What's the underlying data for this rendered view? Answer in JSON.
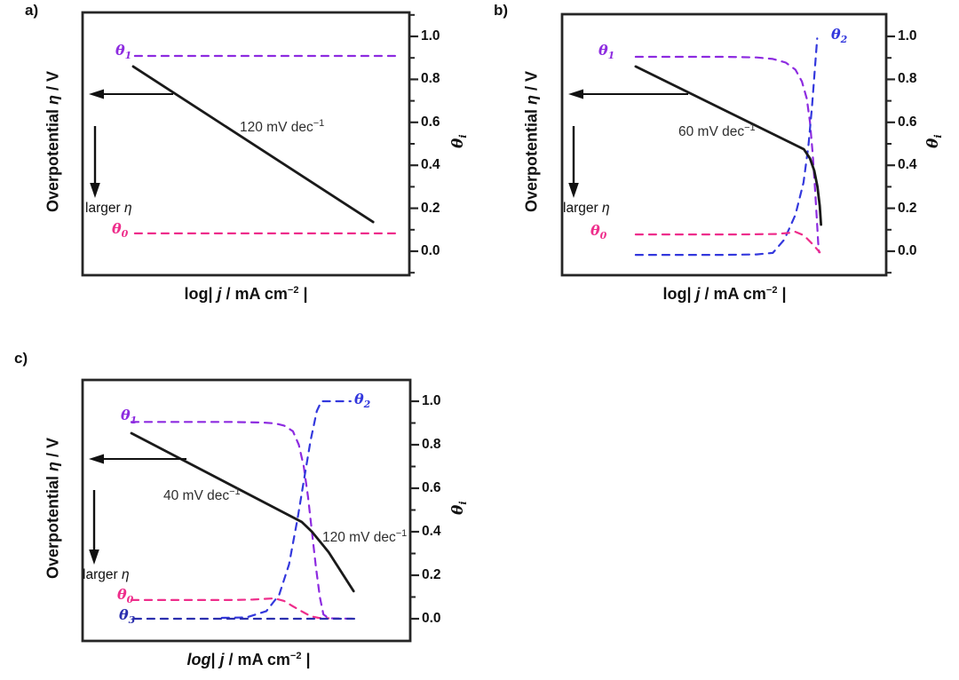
{
  "figure": {
    "panel_tags": [
      "a)",
      "b)",
      "c)"
    ],
    "y_axis_label": {
      "p1": "Overpotential ",
      "eta": "η",
      "p2": " / V"
    },
    "x_axis_label": {
      "p1": "log",
      "p2": "| ",
      "j": "j",
      "p3": " / mA cm",
      "sup": "−2",
      "p4": " |"
    },
    "right_axis_label": {
      "sym": "θ",
      "sub": "i"
    },
    "right_ticks": [
      "1.0",
      "0.8",
      "0.6",
      "0.4",
      "0.2",
      "0.0"
    ],
    "larger_eta": {
      "p1": "larger ",
      "eta": "η"
    }
  },
  "labels": {
    "a": {
      "theta1": {
        "sym": "θ",
        "sub": "1"
      },
      "theta0": {
        "sym": "θ",
        "sub": "0"
      },
      "slope": {
        "text": "120 mV dec",
        "sup": "−1"
      }
    },
    "b": {
      "theta1": {
        "sym": "θ",
        "sub": "1"
      },
      "theta0": {
        "sym": "θ",
        "sub": "0"
      },
      "theta2": {
        "sym": "θ",
        "sub": "2"
      },
      "slope": {
        "text": "60 mV dec",
        "sup": "−1"
      }
    },
    "c": {
      "theta1": {
        "sym": "θ",
        "sub": "1"
      },
      "theta0": {
        "sym": "θ",
        "sub": "0"
      },
      "theta2": {
        "sym": "θ",
        "sub": "2"
      },
      "theta3": {
        "sym": "θ",
        "sub": "3"
      },
      "slope40": {
        "text": "40 mV dec",
        "sup": "−1"
      },
      "slope120": {
        "text": "120 mV dec",
        "sup": "−1"
      }
    }
  },
  "colors": {
    "purple": "#8d2be0",
    "pink": "#ee2d8b",
    "blue": "#3338dd",
    "navy": "#2b2fae",
    "black": "#1a1a1a",
    "axis": "#262626"
  },
  "chart_data": [
    {
      "panel": "a)",
      "type": "line",
      "xlabel": "log| j / mA cm⁻² |",
      "ylabel_left": "Overpotential η / V (schematic, unlabeled; arrow indicates larger η downward)",
      "ylabel_right": "θi",
      "right_ylim": [
        -0.11,
        1.11
      ],
      "right_ticks": [
        0.0,
        0.2,
        0.4,
        0.6,
        0.8,
        1.0
      ],
      "x_units": "fraction of x-axis width (log j axis is unlabeled/schematic)",
      "annotations": [
        "120 mV dec⁻¹",
        "larger η"
      ],
      "note": "y values of all series are given in right-axis θ units as read from the plot",
      "series": [
        {
          "name": "theta1",
          "label": "θ1",
          "color": "purple",
          "dash": true,
          "x": [
            0.16,
            0.962
          ],
          "y": [
            0.909,
            0.909
          ]
        },
        {
          "name": "theta0",
          "label": "θ0",
          "color": "pink",
          "dash": true,
          "x": [
            0.16,
            0.962
          ],
          "y": [
            0.083,
            0.083
          ]
        },
        {
          "name": "tafel",
          "label": "Tafel line 120 mV dec⁻¹",
          "color": "black",
          "dash": false,
          "x": [
            0.155,
            0.889
          ],
          "y": [
            0.86,
            0.136
          ]
        }
      ]
    },
    {
      "panel": "b)",
      "type": "line",
      "xlabel": "log| j / mA cm⁻² |",
      "ylabel_left": "Overpotential η / V (schematic, unlabeled; arrow indicates larger η downward)",
      "ylabel_right": "θi",
      "right_ylim": [
        -0.11,
        1.11
      ],
      "right_ticks": [
        0.0,
        0.2,
        0.4,
        0.6,
        0.8,
        1.0
      ],
      "x_units": "fraction of x-axis width (log j axis is unlabeled/schematic)",
      "annotations": [
        "60 mV dec⁻¹",
        "larger η"
      ],
      "note": "y values of all series are given in right-axis θ units as read from the plot",
      "series": [
        {
          "name": "theta1",
          "label": "θ1",
          "color": "purple",
          "dash": true,
          "x": [
            0.227,
            0.5,
            0.6,
            0.65,
            0.69,
            0.72,
            0.74,
            0.755,
            0.765,
            0.773,
            0.78,
            0.786,
            0.79,
            0.793
          ],
          "y": [
            0.905,
            0.905,
            0.902,
            0.895,
            0.878,
            0.845,
            0.79,
            0.71,
            0.6,
            0.46,
            0.3,
            0.15,
            0.04,
            -0.005
          ]
        },
        {
          "name": "theta2",
          "label": "θ2",
          "color": "blue",
          "dash": true,
          "x": [
            0.227,
            0.5,
            0.6,
            0.65,
            0.686,
            0.72,
            0.745,
            0.76,
            0.771,
            0.78,
            0.787
          ],
          "y": [
            -0.017,
            -0.017,
            -0.015,
            -0.008,
            0.055,
            0.17,
            0.32,
            0.49,
            0.67,
            0.85,
            0.99
          ]
        },
        {
          "name": "theta0",
          "label": "θ0",
          "color": "pink",
          "dash": true,
          "x": [
            0.227,
            0.55,
            0.66,
            0.7,
            0.719,
            0.746,
            0.773,
            0.795
          ],
          "y": [
            0.078,
            0.078,
            0.08,
            0.085,
            0.091,
            0.074,
            0.033,
            -0.005
          ]
        },
        {
          "name": "tafel",
          "label": "Tafel line 60 mV dec⁻¹",
          "color": "black",
          "dash": false,
          "x": [
            0.227,
            0.746,
            0.765,
            0.778,
            0.788,
            0.795,
            0.799
          ],
          "y": [
            0.86,
            0.475,
            0.432,
            0.375,
            0.3,
            0.21,
            0.124
          ]
        }
      ]
    },
    {
      "panel": "c)",
      "type": "line",
      "xlabel": "log| j / mA cm⁻² |",
      "ylabel_left": "Overpotential η / V (schematic, unlabeled; arrow indicates larger η downward)",
      "ylabel_right": "θi",
      "right_ylim": [
        -0.11,
        1.11
      ],
      "right_ticks": [
        0.0,
        0.2,
        0.4,
        0.6,
        0.8,
        1.0
      ],
      "x_units": "fraction of x-axis width (log j axis is unlabeled/schematic)",
      "annotations": [
        "40 mV dec⁻¹",
        "120 mV dec⁻¹",
        "larger η"
      ],
      "note": "y values of all series are given in right-axis θ units as read from the plot",
      "series": [
        {
          "name": "theta1",
          "label": "θ1",
          "color": "purple",
          "dash": true,
          "x": [
            0.149,
            0.45,
            0.55,
            0.588,
            0.615,
            0.642,
            0.66,
            0.675,
            0.688,
            0.7,
            0.712,
            0.724,
            0.735,
            0.751,
            0.832
          ],
          "y": [
            0.905,
            0.905,
            0.902,
            0.898,
            0.888,
            0.862,
            0.8,
            0.7,
            0.56,
            0.4,
            0.24,
            0.1,
            0.02,
            0.002,
            0.0
          ]
        },
        {
          "name": "theta2",
          "label": "θ2",
          "color": "blue",
          "dash": true,
          "x": [
            0.425,
            0.5,
            0.561,
            0.6,
            0.63,
            0.656,
            0.678,
            0.696,
            0.715,
            0.729,
            0.818
          ],
          "y": [
            0.004,
            0.006,
            0.035,
            0.11,
            0.25,
            0.46,
            0.66,
            0.82,
            0.955,
            1.0,
            1.0
          ]
        },
        {
          "name": "theta0",
          "label": "θ0",
          "color": "pink",
          "dash": true,
          "x": [
            0.149,
            0.45,
            0.52,
            0.561,
            0.585,
            0.615,
            0.642,
            0.67,
            0.696,
            0.72,
            0.751
          ],
          "y": [
            0.086,
            0.086,
            0.088,
            0.092,
            0.094,
            0.082,
            0.057,
            0.033,
            0.012,
            0.004,
            0.002
          ]
        },
        {
          "name": "theta3",
          "label": "θ3",
          "color": "navy",
          "dash": true,
          "x": [
            0.157,
            0.832
          ],
          "y": [
            0.0,
            0.0
          ]
        },
        {
          "name": "tafel",
          "label": "Tafel line 40 → 120 mV dec⁻¹",
          "color": "black",
          "dash": false,
          "x": [
            0.149,
            0.669,
            0.7,
            0.73,
            0.751,
            0.791,
            0.827
          ],
          "y": [
            0.853,
            0.445,
            0.4,
            0.345,
            0.306,
            0.212,
            0.127
          ]
        }
      ]
    }
  ]
}
